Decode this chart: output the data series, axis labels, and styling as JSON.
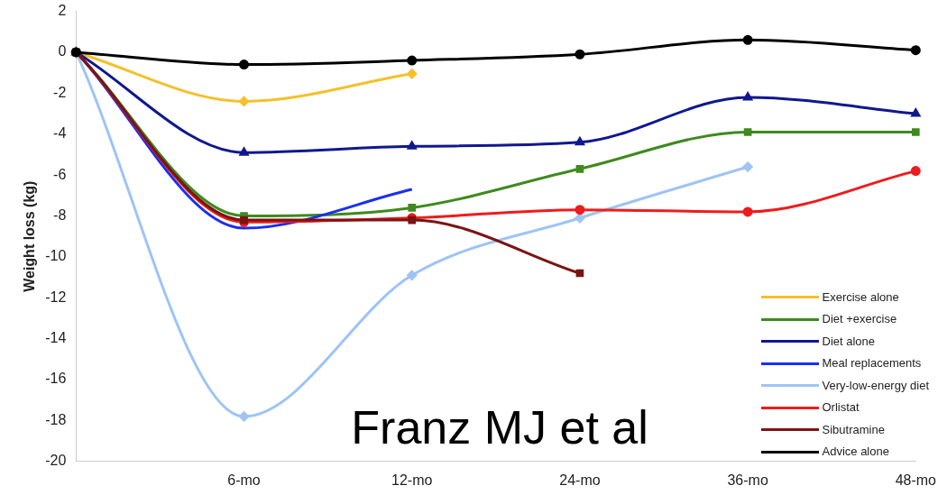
{
  "chart_data": {
    "type": "line",
    "ylabel": "Weight loss (kg)",
    "categories": [
      null,
      "6-mo",
      "12-mo",
      "24-mo",
      "36-mo",
      "48-mo"
    ],
    "ylim": [
      -20,
      2
    ],
    "yticks": [
      -20,
      -18,
      -16,
      -14,
      -12,
      -10,
      -8,
      -6,
      -4,
      -2,
      0,
      2
    ],
    "grid": false,
    "legend": "bottom right",
    "annotations": [
      "Franz MJ et al"
    ],
    "series": [
      {
        "name": "Exercise alone",
        "color": "#f5c02a",
        "marker": "diamond",
        "values": [
          0,
          -2.4,
          -1.05,
          null,
          null,
          null
        ]
      },
      {
        "name": "Diet +exercise",
        "color": "#3f8a1e",
        "marker": "square",
        "values": [
          0,
          -8.0,
          -7.6,
          -5.7,
          -3.9,
          -3.9
        ]
      },
      {
        "name": "Diet alone",
        "color": "#10188e",
        "marker": "triangle",
        "values": [
          0,
          -4.9,
          -4.6,
          -4.4,
          -2.2,
          -3.0
        ]
      },
      {
        "name": "Meal replacements",
        "color": "#1a2ff0",
        "marker": "none",
        "values": [
          0,
          -8.6,
          -6.7,
          null,
          null,
          null
        ]
      },
      {
        "name": "Very-low-energy diet",
        "color": "#9ec4f5",
        "marker": "diamond",
        "values": [
          0,
          -17.8,
          -10.9,
          -8.1,
          -5.6,
          null
        ]
      },
      {
        "name": "Orlistat",
        "color": "#ee1c1c",
        "marker": "circle",
        "values": [
          0,
          -8.3,
          -8.1,
          -7.7,
          -7.8,
          -5.8
        ]
      },
      {
        "name": "Sibutramine",
        "color": "#7a1414",
        "marker": "square",
        "values": [
          0,
          -8.2,
          -8.2,
          -10.8,
          null,
          null
        ]
      },
      {
        "name": "Advice alone",
        "color": "#000000",
        "marker": "circle",
        "values": [
          0,
          -0.6,
          -0.4,
          -0.1,
          0.6,
          0.1
        ]
      }
    ]
  }
}
